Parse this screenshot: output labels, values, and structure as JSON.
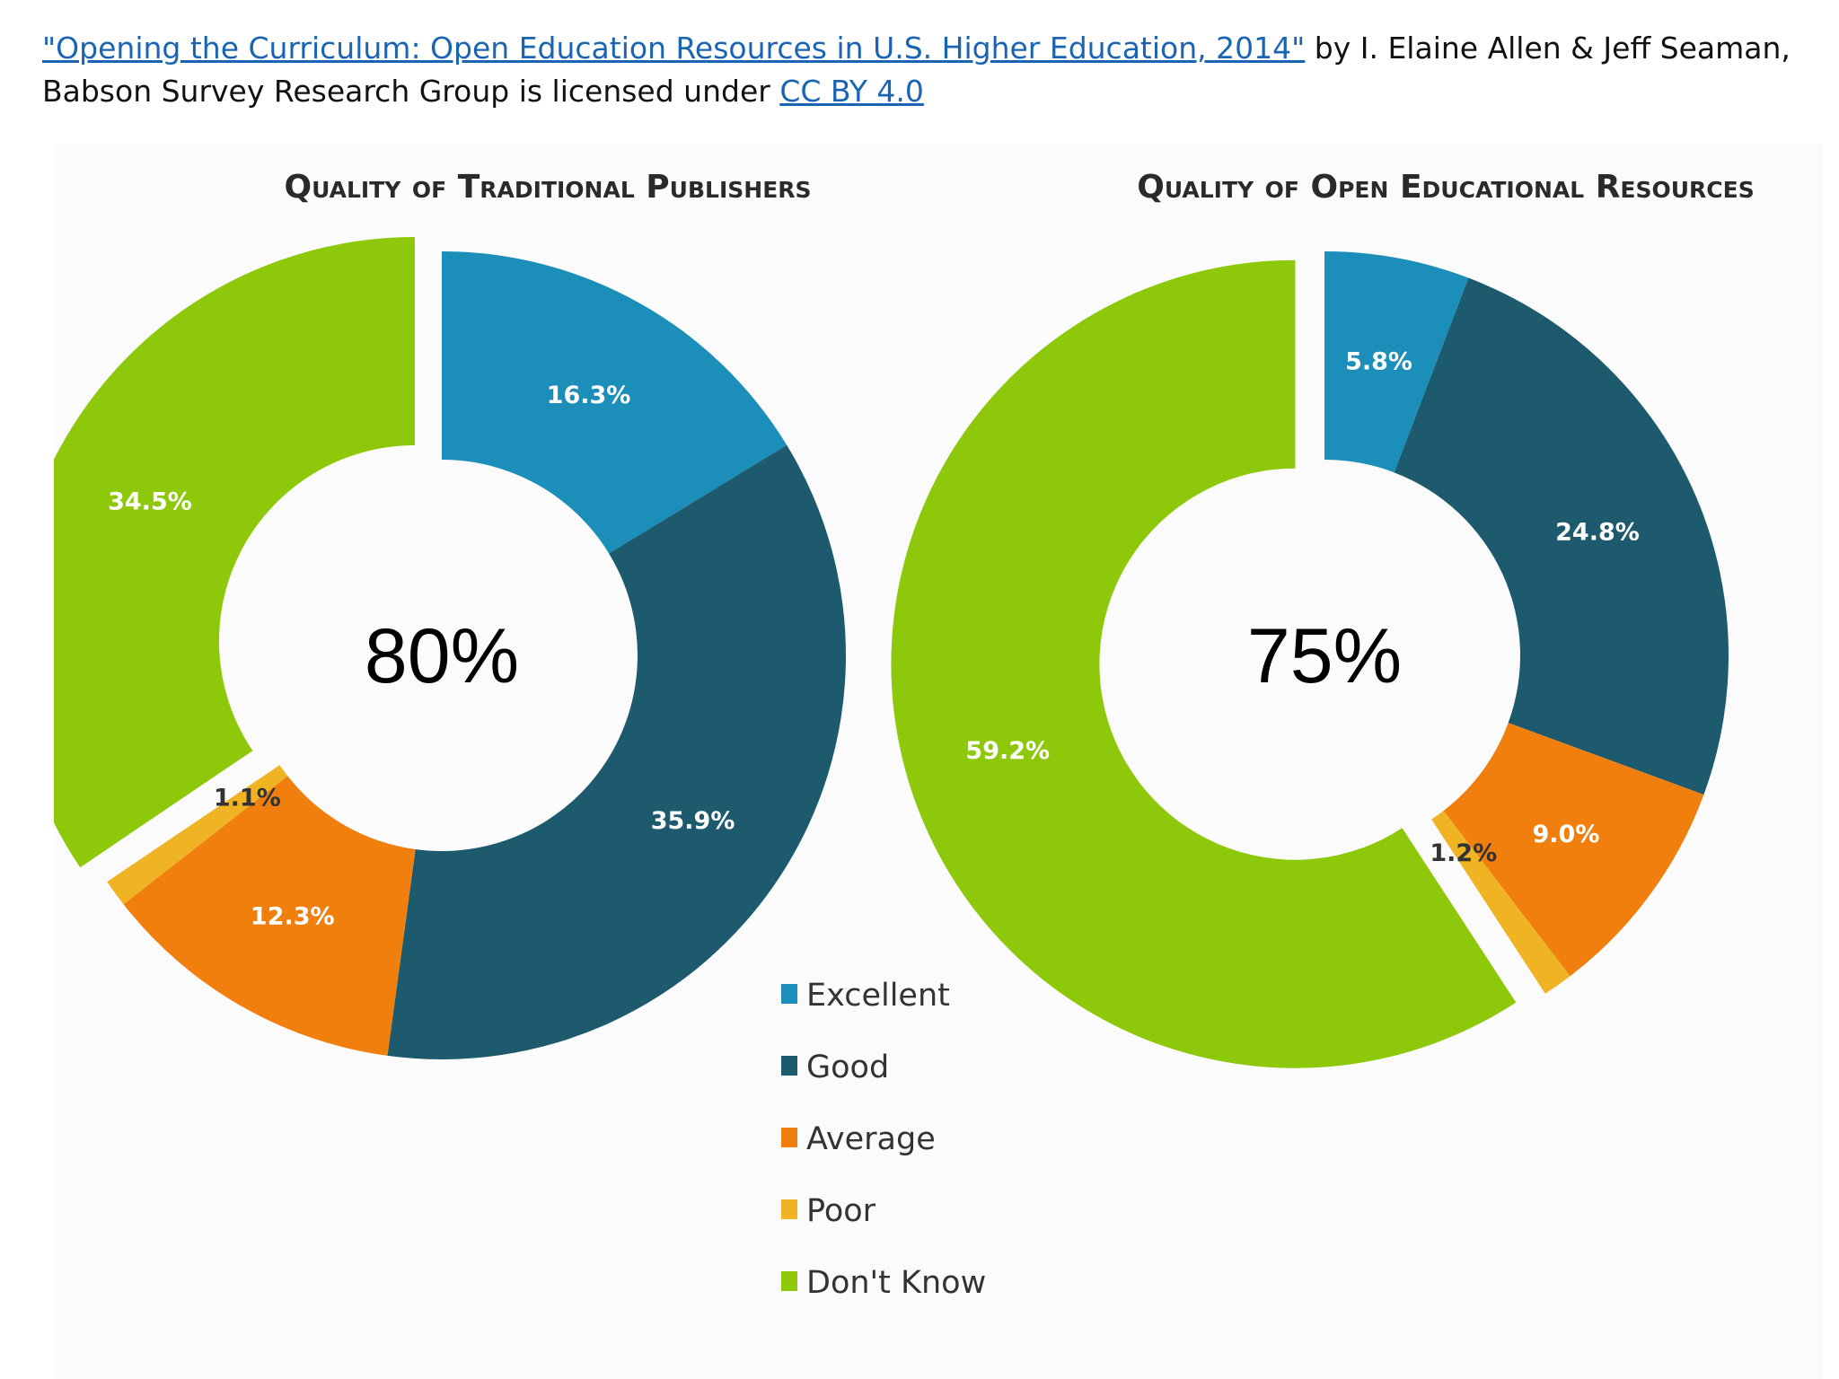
{
  "attribution": {
    "link_text": "\"Opening the Curriculum: Open Education Resources in U.S. Higher Education, 2014\"",
    "by_text": " by I. Elaine Allen & Jeff Seaman, Babson Survey Research Group is licensed under ",
    "license_text": "CC BY 4.0"
  },
  "colors": {
    "Excellent": "#1b8fb9",
    "Good": "#1e5a6e",
    "Average": "#f07f0e",
    "Poor": "#f0b323",
    "Don't Know": "#8dc90a"
  },
  "legend": [
    "Excellent",
    "Good",
    "Average",
    "Poor",
    "Don't Know"
  ],
  "chart_data": [
    {
      "type": "pie",
      "variant": "donut",
      "title": "Quality of Traditional Publishers",
      "center_label": "80%",
      "exploded": "Don't Know",
      "slices": [
        {
          "category": "Excellent",
          "value": 16.3,
          "label": "16.3%"
        },
        {
          "category": "Good",
          "value": 35.9,
          "label": "35.9%"
        },
        {
          "category": "Average",
          "value": 12.3,
          "label": "12.3%"
        },
        {
          "category": "Poor",
          "value": 1.1,
          "label": "1.1%"
        },
        {
          "category": "Don't Know",
          "value": 34.5,
          "label": "34.5%"
        }
      ]
    },
    {
      "type": "pie",
      "variant": "donut",
      "title": "Quality of Open Educational Resources",
      "center_label": "75%",
      "exploded": "Don't Know",
      "slices": [
        {
          "category": "Excellent",
          "value": 5.8,
          "label": "5.8%"
        },
        {
          "category": "Good",
          "value": 24.8,
          "label": "24.8%"
        },
        {
          "category": "Average",
          "value": 9.0,
          "label": "9.0%"
        },
        {
          "category": "Poor",
          "value": 1.2,
          "label": "1.2%"
        },
        {
          "category": "Don't Know",
          "value": 59.2,
          "label": "59.2%"
        }
      ]
    }
  ]
}
